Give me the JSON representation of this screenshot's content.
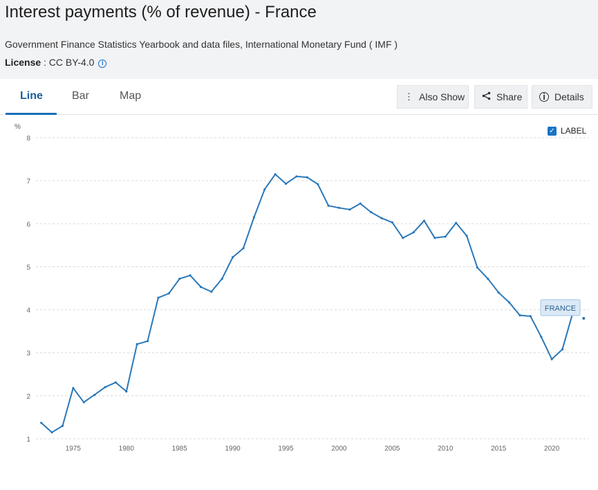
{
  "header": {
    "title": "Interest payments (% of revenue) - France",
    "source": "Government Finance Statistics Yearbook and data files, International Monetary Fund ( IMF )",
    "license_label": "License",
    "license_value": " : CC BY-4.0"
  },
  "tabs": [
    {
      "label": "Line",
      "active": true
    },
    {
      "label": "Bar",
      "active": false
    },
    {
      "label": "Map",
      "active": false
    }
  ],
  "toolbar": {
    "also_show": "Also Show",
    "share": "Share",
    "details": "Details"
  },
  "label_toggle": {
    "label": "LABEL",
    "checked": true
  },
  "colors": {
    "line": "#2b78b8",
    "grid": "#d9d9d9",
    "tab_active": "#1a5f9e"
  },
  "chart_data": {
    "type": "line",
    "ylabel": "%",
    "xlim": [
      1971.5,
      2023.5
    ],
    "ylim": [
      1,
      8
    ],
    "yticks": [
      1,
      2,
      3,
      4,
      5,
      6,
      7,
      8
    ],
    "xticks": [
      1975,
      1980,
      1985,
      1990,
      1995,
      2000,
      2005,
      2010,
      2015,
      2020
    ],
    "grid": true,
    "series": [
      {
        "name": "FRANCE",
        "x": [
          1972,
          1973,
          1974,
          1975,
          1976,
          1977,
          1978,
          1979,
          1980,
          1981,
          1982,
          1983,
          1984,
          1985,
          1986,
          1987,
          1988,
          1989,
          1990,
          1991,
          1992,
          1993,
          1994,
          1995,
          1996,
          1997,
          1998,
          1999,
          2000,
          2001,
          2002,
          2003,
          2004,
          2005,
          2006,
          2007,
          2008,
          2009,
          2010,
          2011,
          2012,
          2013,
          2014,
          2015,
          2016,
          2017,
          2018,
          2019,
          2020,
          2021,
          2022,
          2023
        ],
        "values": [
          1.37,
          1.15,
          1.3,
          2.18,
          1.85,
          2.02,
          2.2,
          2.31,
          2.1,
          3.2,
          3.27,
          4.28,
          4.38,
          4.72,
          4.8,
          4.53,
          4.42,
          4.72,
          5.22,
          5.43,
          6.15,
          6.8,
          7.15,
          6.93,
          7.1,
          7.08,
          6.92,
          6.42,
          6.37,
          6.33,
          6.47,
          6.27,
          6.13,
          6.03,
          5.67,
          5.8,
          6.07,
          5.67,
          5.7,
          6.02,
          5.72,
          4.98,
          4.72,
          4.4,
          4.17,
          3.87,
          3.85,
          3.37,
          2.85,
          3.08,
          3.95,
          3.8
        ]
      }
    ],
    "end_label": "FRANCE"
  }
}
